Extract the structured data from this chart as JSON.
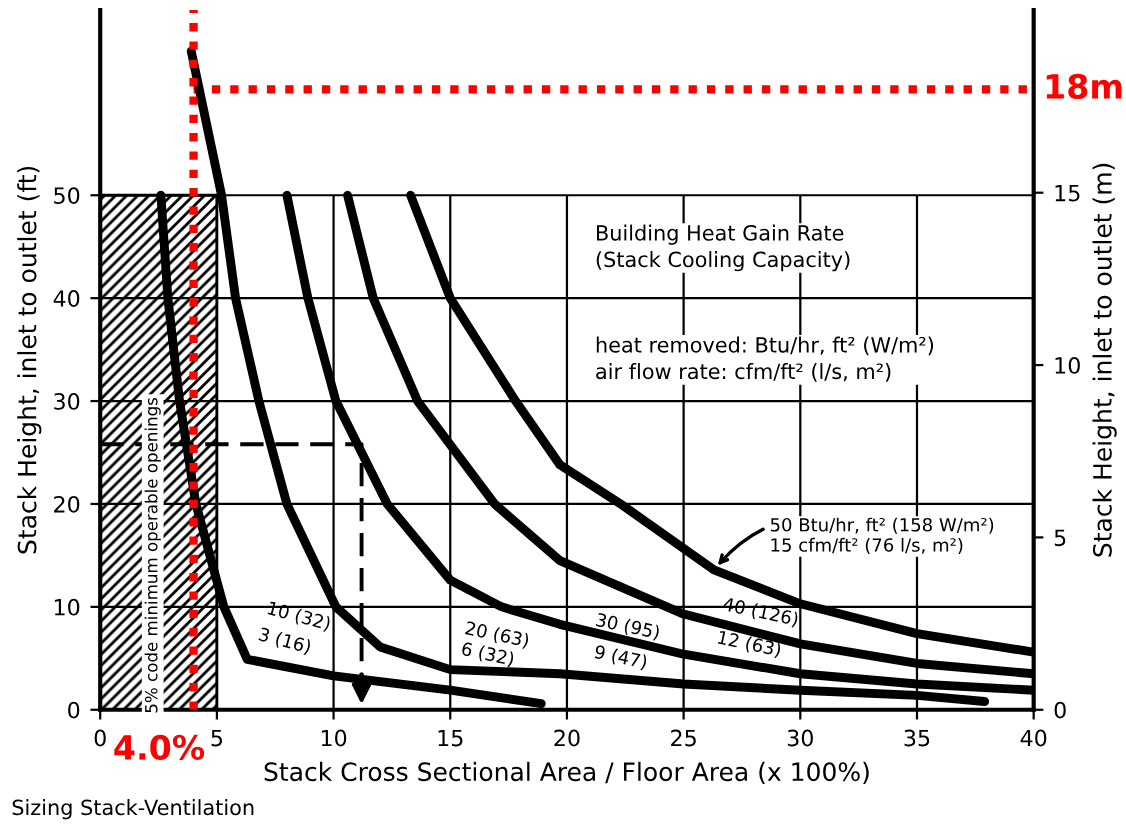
{
  "chart_data": {
    "type": "line",
    "xlabel": "Stack Cross Sectional Area / Floor Area (x 100%)",
    "ylabel": "Stack Height, inlet to outlet (ft)",
    "y2label": "Stack Height, inlet to outlet (m)",
    "xlim": [
      0,
      40
    ],
    "xticks": [
      0,
      5,
      10,
      15,
      20,
      25,
      30,
      35,
      40
    ],
    "ylim": [
      0,
      68
    ],
    "yticks": [
      0,
      10,
      20,
      30,
      40,
      50
    ],
    "y2lim": [
      0,
      20.3
    ],
    "y2ticks": [
      0,
      5,
      10,
      15
    ],
    "grid": true,
    "marker": "none",
    "line_style": "solid",
    "series": [
      {
        "color": "#000000",
        "x": [
          2.6,
          2.9,
          3.4,
          4.1,
          5.3,
          6.3,
          10.0,
          15.0,
          18.9
        ],
        "values": [
          50,
          40,
          30,
          20,
          10,
          4.9,
          3.3,
          1.9,
          0.6
        ]
      },
      {
        "color": "#000000",
        "x": [
          3.9,
          5.2,
          5.8,
          6.8,
          8.0,
          10.1,
          12.0,
          15.0,
          19.7,
          25.0,
          30.0,
          35.0,
          37.9
        ],
        "values": [
          64,
          50,
          40,
          30,
          20,
          10,
          6.1,
          3.9,
          3.5,
          2.5,
          1.9,
          1.4,
          0.8
        ]
      },
      {
        "color": "#000000",
        "x": [
          8.0,
          8.9,
          10.1,
          12.3,
          15.0,
          17.2,
          19.7,
          25.0,
          30.0,
          35.0,
          40.0
        ],
        "values": [
          50,
          40,
          30,
          20,
          12.6,
          10,
          8.3,
          5.4,
          3.5,
          2.5,
          1.9
        ]
      },
      {
        "color": "#000000",
        "x": [
          10.6,
          11.7,
          13.6,
          16.9,
          19.7,
          25.0,
          30.0,
          35.0,
          40.0
        ],
        "values": [
          50,
          40,
          30,
          20,
          14.5,
          9.3,
          6.4,
          4.5,
          3.5
        ]
      },
      {
        "color": "#000000",
        "x": [
          13.3,
          15.0,
          17.8,
          19.7,
          22.3,
          26.3,
          30.0,
          35.0,
          40.0
        ],
        "values": [
          50,
          40,
          30,
          23.8,
          20,
          13.6,
          10.3,
          7.4,
          5.6
        ]
      },
      {
        "color": "#000000",
        "line_style": "dashed",
        "x": [
          0,
          11.2,
          11.2
        ],
        "values": [
          25.8,
          25.8,
          0
        ]
      }
    ],
    "ref_lines": [
      {
        "axis": "x",
        "value": 4.0,
        "label": "4.0%",
        "color": "#ff0000",
        "line_style": "dotted"
      },
      {
        "axis": "y2",
        "value": 18,
        "label": "18m",
        "color": "#ff0000",
        "line_style": "dotted"
      }
    ],
    "bands": [
      {
        "axis": "x",
        "from": 0,
        "to": 5,
        "label": "5% code minimum operable openings",
        "color": "#000000"
      }
    ],
    "annotations": [
      "Building Heat Gain Rate\n(Stack Cooling Capacity)",
      "heat removed: Btu/hr, ft² (W/m²)\nair flow rate: cfm/ft² (l/s, m²)",
      "10 (32)",
      "3 (16)",
      "20 (63)",
      "6 (32)",
      "30 (95)",
      "9 (47)",
      "40 (126)",
      "12 (63)",
      {
        "text": "50 Btu/hr, ft² (158 W/m²)\n15 cfm/ft² (76 l/s, m²)",
        "x": 26.3,
        "y": 13.6
      },
      "Sizing Stack-Ventilation"
    ]
  }
}
